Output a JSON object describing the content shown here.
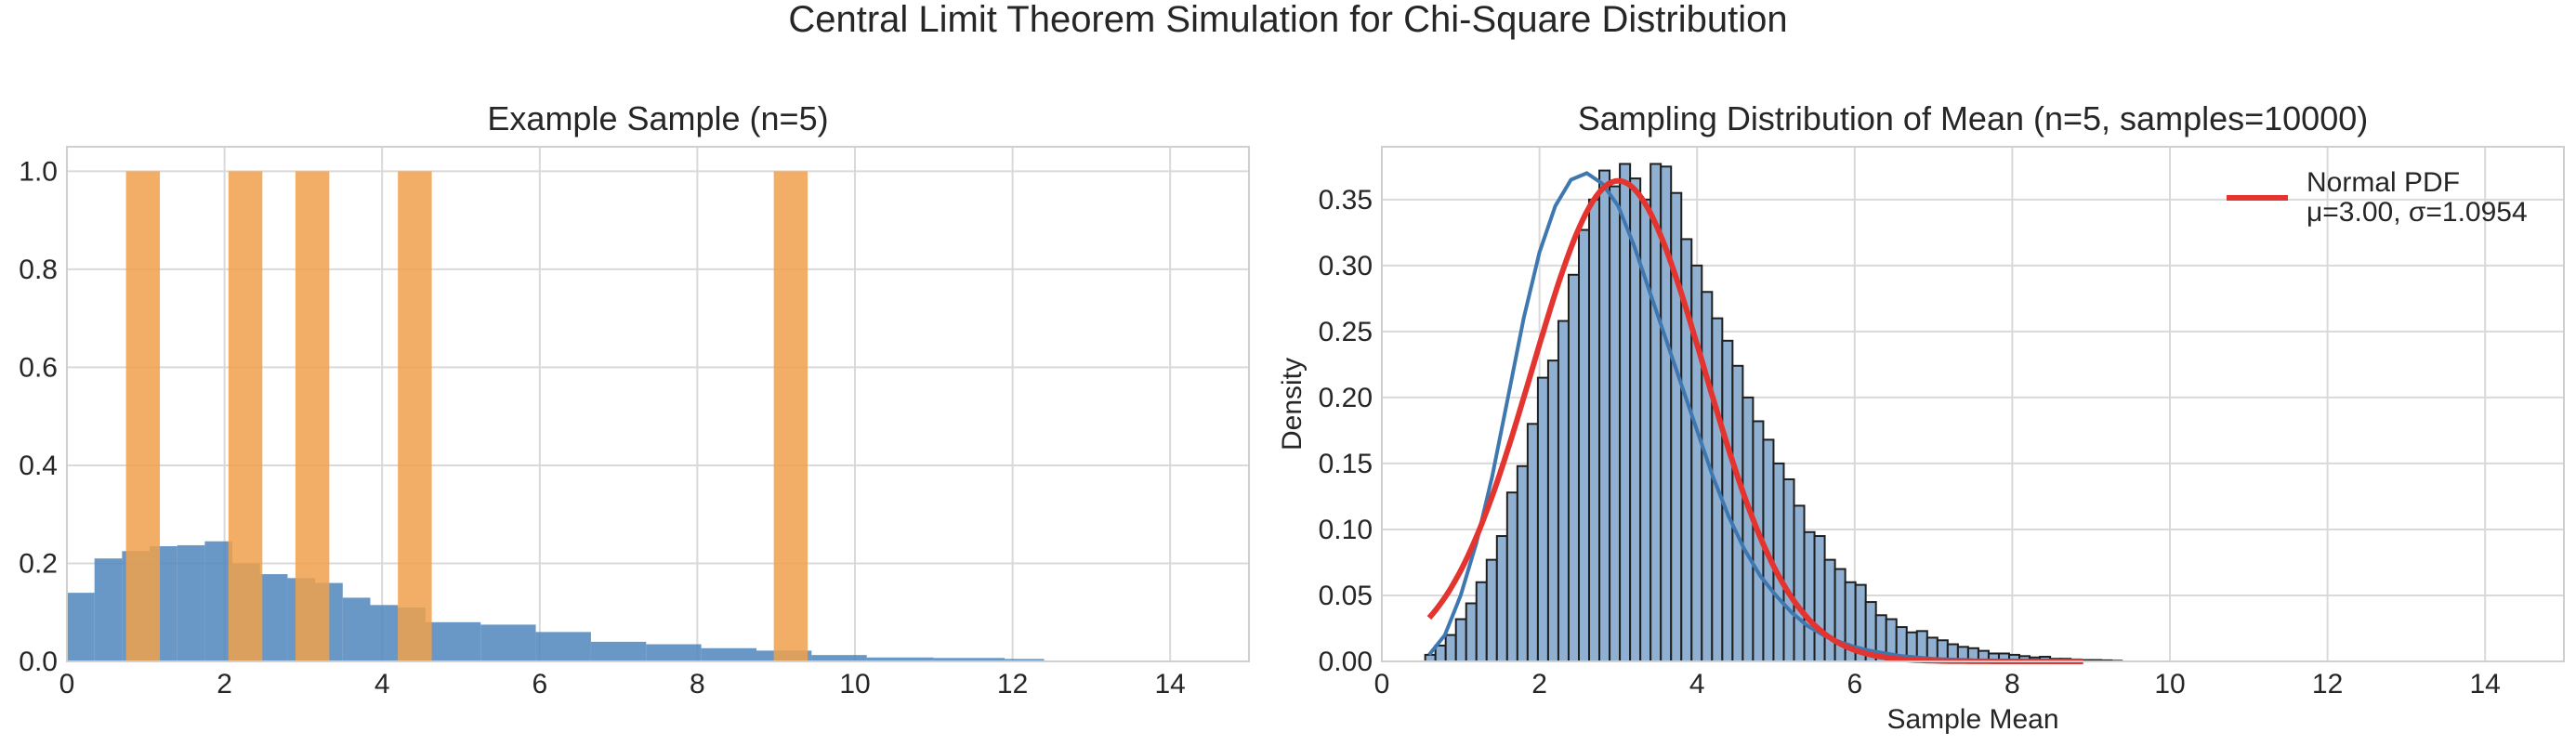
{
  "figure": {
    "suptitle": "Central Limit Theorem Simulation for Chi-Square Distribution"
  },
  "colors": {
    "population_hist": "#4f86bd",
    "sample_bars": "#f0a04b",
    "sampling_hist_fill": "#8fb0d1",
    "sampling_hist_edge": "#1f1f1f",
    "kde_line": "#3f78b0",
    "normal_pdf": "#e3342f",
    "grid": "#d9d9d9",
    "spine": "#cfcfcf"
  },
  "chart_data": [
    {
      "type": "bar",
      "title": "Example Sample (n=5)",
      "xlabel": "",
      "ylabel": "",
      "xlim": [
        0,
        15
      ],
      "ylim": [
        0,
        1.05
      ],
      "grid": true,
      "xticks": [
        0,
        2,
        4,
        6,
        8,
        10,
        12,
        14
      ],
      "yticks": [
        0.0,
        0.2,
        0.4,
        0.6,
        0.8,
        1.0
      ],
      "xtick_labels": [
        "0",
        "2",
        "4",
        "6",
        "8",
        "10",
        "12",
        "14"
      ],
      "ytick_labels": [
        "0.0",
        "0.2",
        "0.4",
        "0.6",
        "0.8",
        "1.0"
      ],
      "population_histogram": {
        "bin_edges": [
          0.0,
          0.35,
          0.7,
          1.05,
          1.4,
          1.75,
          2.1,
          2.45,
          2.8,
          3.15,
          3.5,
          3.85,
          4.2,
          4.55,
          5.25,
          5.95,
          6.65,
          7.35,
          8.05,
          8.75,
          9.45,
          10.15,
          11.0,
          11.9,
          12.4
        ],
        "densities": [
          0.14,
          0.21,
          0.225,
          0.235,
          0.237,
          0.245,
          0.2,
          0.178,
          0.17,
          0.16,
          0.13,
          0.115,
          0.11,
          0.08,
          0.075,
          0.06,
          0.04,
          0.035,
          0.027,
          0.022,
          0.013,
          0.008,
          0.007,
          0.005
        ]
      },
      "sample_histogram": {
        "bin_edges": [
          0.75,
          1.18,
          2.05,
          2.48,
          2.9,
          3.33,
          4.2,
          4.63,
          8.97,
          9.4
        ],
        "heights": [
          1.0,
          0,
          1.0,
          0,
          1.0,
          0,
          1.0,
          0,
          1.0
        ]
      }
    },
    {
      "type": "bar",
      "title": "Sampling Distribution of Mean (n=5, samples=10000)",
      "xlabel": "Sample Mean",
      "ylabel": "Density",
      "xlim": [
        0,
        15
      ],
      "ylim": [
        0,
        0.39
      ],
      "grid": true,
      "xticks": [
        0,
        2,
        4,
        6,
        8,
        10,
        12,
        14
      ],
      "yticks": [
        0.0,
        0.05,
        0.1,
        0.15,
        0.2,
        0.25,
        0.3,
        0.35
      ],
      "xtick_labels": [
        "0",
        "2",
        "4",
        "6",
        "8",
        "10",
        "12",
        "14"
      ],
      "ytick_labels": [
        "0.00",
        "0.05",
        "0.10",
        "0.15",
        "0.20",
        "0.25",
        "0.30",
        "0.35"
      ],
      "histogram": {
        "bin_start": 0.55,
        "bin_width": 0.13,
        "densities": [
          0.005,
          0.012,
          0.02,
          0.032,
          0.044,
          0.06,
          0.077,
          0.095,
          0.128,
          0.148,
          0.18,
          0.215,
          0.228,
          0.258,
          0.293,
          0.327,
          0.35,
          0.372,
          0.36,
          0.377,
          0.366,
          0.35,
          0.377,
          0.375,
          0.355,
          0.32,
          0.3,
          0.28,
          0.26,
          0.243,
          0.224,
          0.2,
          0.182,
          0.168,
          0.15,
          0.138,
          0.118,
          0.098,
          0.095,
          0.077,
          0.07,
          0.06,
          0.058,
          0.045,
          0.035,
          0.032,
          0.026,
          0.022,
          0.023,
          0.018,
          0.016,
          0.013,
          0.011,
          0.01,
          0.008,
          0.006,
          0.006,
          0.005,
          0.004,
          0.003,
          0.0035,
          0.002,
          0.002,
          0.0015,
          0.001,
          0.001,
          0.0008,
          0.0005
        ]
      },
      "kde": {
        "x": [
          0.6,
          0.8,
          1.0,
          1.2,
          1.4,
          1.6,
          1.8,
          2.0,
          2.2,
          2.4,
          2.6,
          2.8,
          3.0,
          3.2,
          3.4,
          3.6,
          3.8,
          4.0,
          4.2,
          4.4,
          4.6,
          4.8,
          5.0,
          5.2,
          5.4,
          5.6,
          5.8,
          6.0,
          6.2,
          6.4,
          6.6,
          6.8,
          7.0,
          7.2,
          7.5
        ],
        "y": [
          0.005,
          0.02,
          0.05,
          0.09,
          0.14,
          0.2,
          0.26,
          0.31,
          0.345,
          0.365,
          0.37,
          0.362,
          0.345,
          0.315,
          0.28,
          0.245,
          0.21,
          0.175,
          0.14,
          0.11,
          0.085,
          0.065,
          0.05,
          0.037,
          0.027,
          0.02,
          0.015,
          0.011,
          0.008,
          0.006,
          0.004,
          0.003,
          0.002,
          0.0015,
          0.001
        ]
      },
      "normal_pdf": {
        "mu": 3.0,
        "sigma": 1.0954,
        "x_range": [
          0.6,
          8.9
        ]
      },
      "legend": {
        "position": "top-right",
        "label_line1": "Normal PDF",
        "label_line2": "μ=3.00, σ=1.0954"
      }
    }
  ]
}
